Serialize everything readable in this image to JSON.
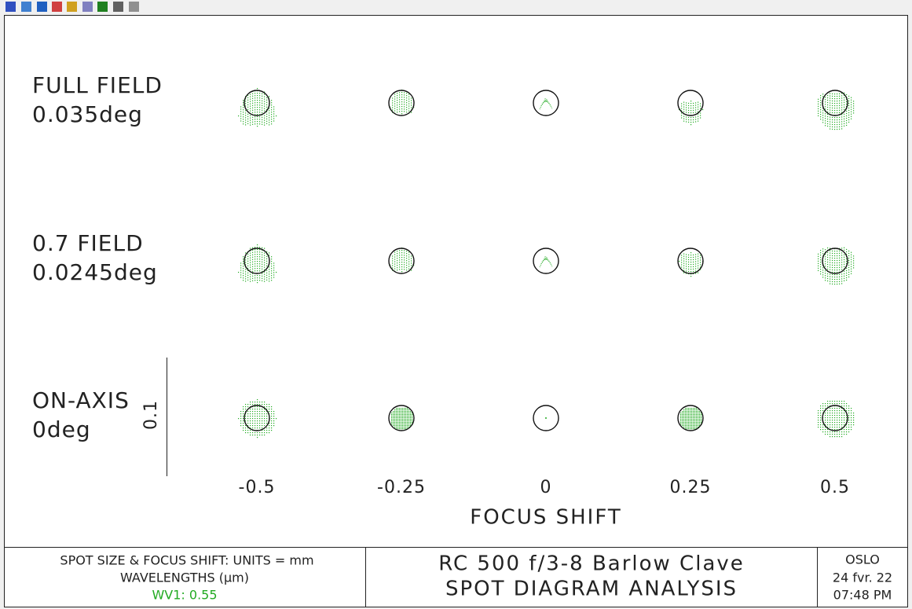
{
  "rows": [
    {
      "label": "FULL FIELD",
      "angle": "0.035deg"
    },
    {
      "label": "0.7 FIELD",
      "angle": "0.0245deg"
    },
    {
      "label": "ON-AXIS",
      "angle": "0deg"
    }
  ],
  "scale_bar": "0.1",
  "focus_shifts": [
    "-0.5",
    "-0.25",
    "0",
    "0.25",
    "0.5"
  ],
  "x_axis_label": "FOCUS SHIFT",
  "footer": {
    "units": "SPOT SIZE & FOCUS SHIFT: UNITS = mm",
    "wavelengths_title": "WAVELENGTHS (μm)",
    "wavelength": "WV1: 0.55",
    "title_line1": "RC 500 f/3-8 Barlow Clave",
    "title_line2": "SPOT DIAGRAM ANALYSIS",
    "program": "OSLO",
    "date": "24 fvr. 22",
    "time": "07:48 PM"
  }
}
